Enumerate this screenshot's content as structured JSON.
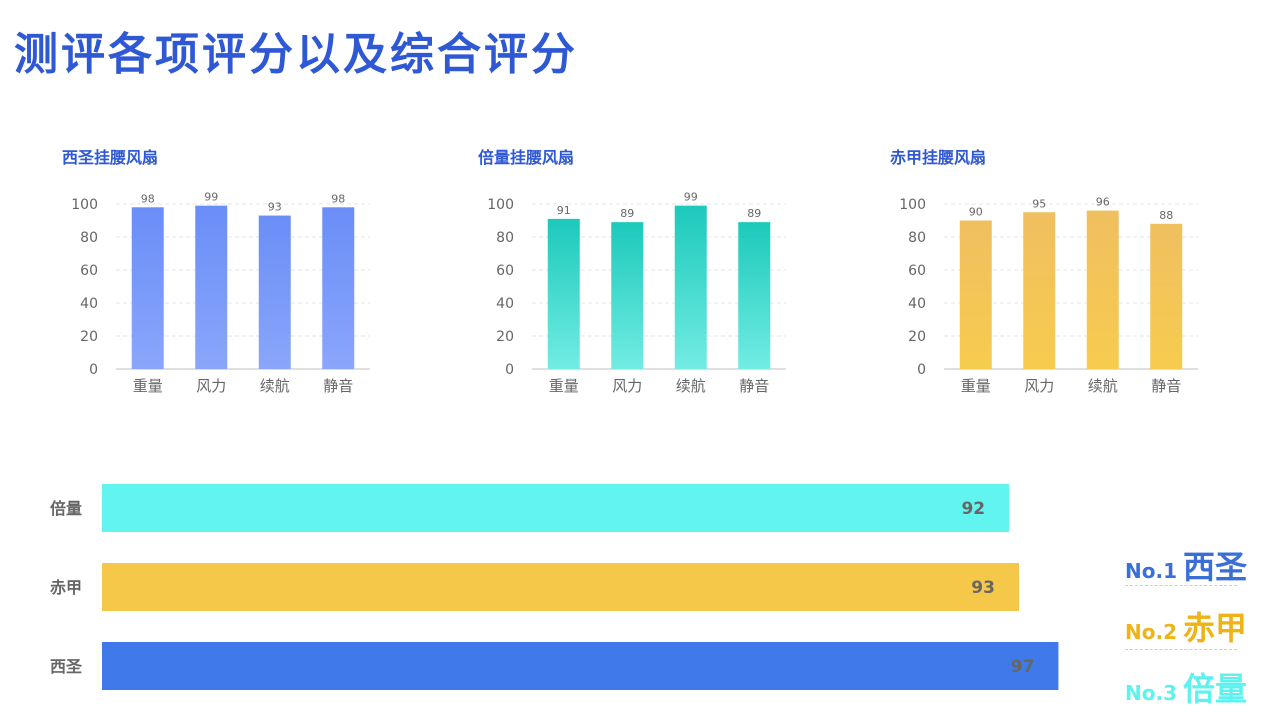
{
  "page": {
    "title": "测评各项评分以及综合评分"
  },
  "colors": {
    "title": "#2f59d4",
    "xisheng_top": "#6a8ef7",
    "xisheng_bottom": "#8aa6fb",
    "beiliang_top": "#1cc9bb",
    "beiliang_bottom": "#72ece3",
    "chijia_top": "#f0bf60",
    "chijia_bottom": "#f6cc4e",
    "bar_xisheng": "#3f79ea",
    "bar_chijia": "#f5c84a",
    "bar_beiliang": "#62f4ee",
    "rank1": "#3a6fd8",
    "rank2": "#efb315",
    "rank3": "#5ef2ee"
  },
  "chart_data": [
    {
      "type": "bar",
      "title": "西圣挂腰风扇",
      "categories": [
        "重量",
        "风力",
        "续航",
        "静音"
      ],
      "values": [
        98,
        99,
        93,
        98
      ],
      "ylim": [
        0,
        100
      ],
      "yticks": [
        0,
        20,
        40,
        60,
        80,
        100
      ],
      "grid": true
    },
    {
      "type": "bar",
      "title": "倍量挂腰风扇",
      "categories": [
        "重量",
        "风力",
        "续航",
        "静音"
      ],
      "values": [
        91,
        89,
        99,
        89
      ],
      "ylim": [
        0,
        100
      ],
      "yticks": [
        0,
        20,
        40,
        60,
        80,
        100
      ],
      "grid": true
    },
    {
      "type": "bar",
      "title": "赤甲挂腰风扇",
      "categories": [
        "重量",
        "风力",
        "续航",
        "静音"
      ],
      "values": [
        90,
        95,
        96,
        88
      ],
      "ylim": [
        0,
        100
      ],
      "yticks": [
        0,
        20,
        40,
        60,
        80,
        100
      ],
      "grid": true
    },
    {
      "type": "bar",
      "orientation": "horizontal",
      "categories": [
        "倍量",
        "赤甲",
        "西圣"
      ],
      "values": [
        92,
        93,
        97
      ],
      "xlim": [
        0,
        100
      ]
    }
  ],
  "ranking": [
    {
      "no": "No.1",
      "name": "西圣"
    },
    {
      "no": "No.2",
      "name": "赤甲"
    },
    {
      "no": "No.3",
      "name": "倍量"
    }
  ]
}
